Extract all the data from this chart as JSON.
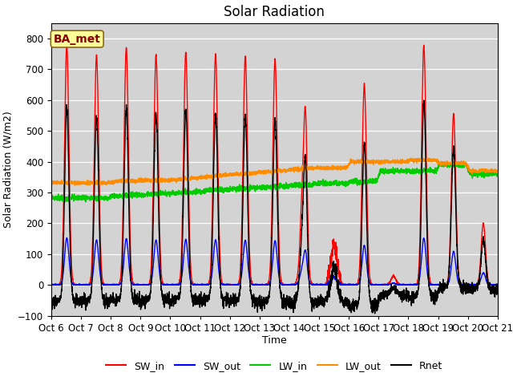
{
  "title": "Solar Radiation",
  "xlabel": "Time",
  "ylabel": "Solar Radiation (W/m2)",
  "annotation": "BA_met",
  "ylim": [
    -100,
    850
  ],
  "yticks": [
    -100,
    0,
    100,
    200,
    300,
    400,
    500,
    600,
    700,
    800
  ],
  "n_days": 15,
  "bg_color": "#d3d3d3",
  "lines": {
    "SW_in": {
      "color": "#ff0000",
      "label": "SW_in",
      "lw": 1.0
    },
    "SW_out": {
      "color": "#0000ff",
      "label": "SW_out",
      "lw": 1.0
    },
    "LW_in": {
      "color": "#00cc00",
      "label": "LW_in",
      "lw": 1.0
    },
    "LW_out": {
      "color": "#ff8c00",
      "label": "LW_out",
      "lw": 1.0
    },
    "Rnet": {
      "color": "#000000",
      "label": "Rnet",
      "lw": 1.0
    }
  },
  "title_fontsize": 12,
  "label_fontsize": 9,
  "tick_fontsize": 8.5,
  "legend_fontsize": 9,
  "annot_fontsize": 10
}
